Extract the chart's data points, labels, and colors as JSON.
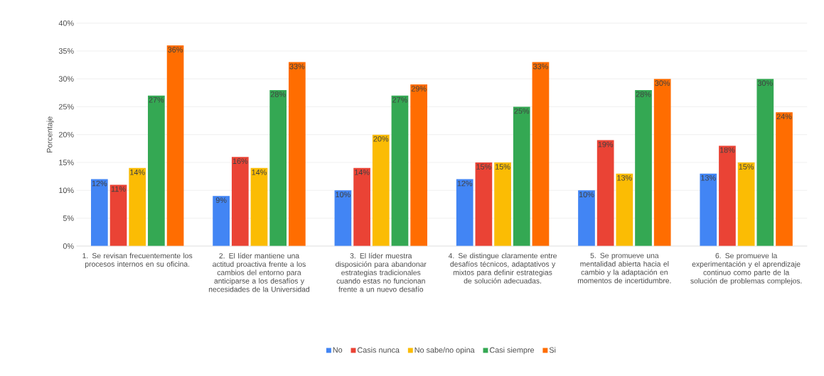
{
  "chart_data": {
    "type": "bar",
    "ylabel": "Porcentaje",
    "categories": [
      "1.   Se revisan frecuentemente los procesos internos en su oficina.",
      "2.   El líder mantiene una actitud proactiva frente a los cambios del entorno para anticiparse a los desafíos y necesidades de la Universidad",
      "3.   El líder muestra disposición para abandonar estrategias tradicionales cuando estas no funcionan frente a un nuevo desafío",
      "4.   Se distingue claramente entre desafíos técnicos, adaptativos y mixtos para definir estrategias de solución adecuadas.",
      "5.   Se promueve una mentalidad abierta hacia el cambio y la adaptación en momentos de incertidumbre.",
      "6.   Se promueve la experimentación y el aprendizaje continuo como parte de la solución de problemas complejos."
    ],
    "series": [
      {
        "name": "No",
        "color": "#4285f4",
        "values": [
          12,
          9,
          10,
          12,
          10,
          13
        ],
        "value_labels": [
          "12%",
          "9%",
          "10%",
          "12%",
          "10%",
          "13%"
        ]
      },
      {
        "name": "Casis nunca",
        "color": "#ea4335",
        "values": [
          11,
          16,
          14,
          15,
          19,
          18
        ],
        "value_labels": [
          "11%",
          "16%",
          "14%",
          "15%",
          "19%",
          "18%"
        ]
      },
      {
        "name": "No sabe/no opina",
        "color": "#fbbc04",
        "values": [
          14,
          14,
          20,
          15,
          13,
          15
        ],
        "value_labels": [
          "14%",
          "14%",
          "20%",
          "15%",
          "13%",
          "15%"
        ]
      },
      {
        "name": "Casi siempre",
        "color": "#34a853",
        "values": [
          27,
          28,
          27,
          25,
          28,
          30
        ],
        "value_labels": [
          "27%",
          "28%",
          "27%",
          "25%",
          "28%",
          "30%"
        ]
      },
      {
        "name": "Si",
        "color": "#ff6d01",
        "values": [
          36,
          33,
          29,
          33,
          30,
          24
        ],
        "value_labels": [
          "36%",
          "33%",
          "29%",
          "33%",
          "30%",
          "24%"
        ]
      }
    ],
    "ylim": [
      0,
      40
    ],
    "yticks": [
      {
        "value": 0,
        "label": "0%"
      },
      {
        "value": 5,
        "label": "5%"
      },
      {
        "value": 10,
        "label": "10%"
      },
      {
        "value": 15,
        "label": "15%"
      },
      {
        "value": 20,
        "label": "20%"
      },
      {
        "value": 25,
        "label": "25%"
      },
      {
        "value": 30,
        "label": "30%"
      },
      {
        "value": 35,
        "label": "35%"
      },
      {
        "value": 40,
        "label": "40%"
      }
    ],
    "grid": "y",
    "legend": "bottom"
  }
}
